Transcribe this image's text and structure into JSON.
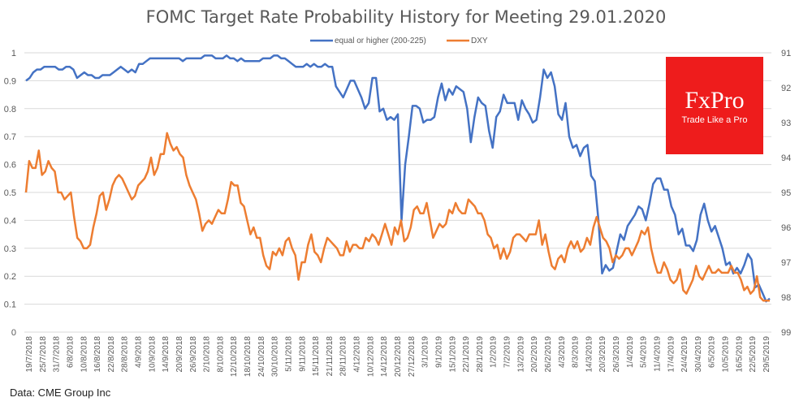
{
  "chart_data": {
    "type": "line",
    "title": "FOMC Target Rate Probability History for Meeting 29.01.2020",
    "source": "Data: CME Group Inc",
    "logo": {
      "brand": "FxPro",
      "tagline": "Trade Like a Pro",
      "color": "#ee1c1c"
    },
    "left_axis": {
      "min": 0,
      "max": 1,
      "ticks": [
        "0",
        "0.1",
        "0.2",
        "0.3",
        "0.4",
        "0.5",
        "0.6",
        "0.7",
        "0.8",
        "0.9",
        "1"
      ]
    },
    "right_axis": {
      "min": 91,
      "max": 99,
      "inverted": true,
      "ticks": [
        "91",
        "92",
        "93",
        "94",
        "95",
        "96",
        "97",
        "98",
        "99"
      ]
    },
    "grid": true,
    "legend_position": "top-center",
    "x_tick_labels": [
      "19/7/2018",
      "25/7/2018",
      "31/7/2018",
      "6/8/2018",
      "10/8/2018",
      "16/8/2018",
      "22/8/2018",
      "28/8/2018",
      "4/9/2018",
      "10/9/2018",
      "14/9/2018",
      "20/9/2018",
      "26/9/2018",
      "2/10/2018",
      "8/10/2018",
      "12/10/2018",
      "18/10/2018",
      "24/10/2018",
      "30/10/2018",
      "5/11/2018",
      "9/11/2018",
      "15/11/2018",
      "21/11/2018",
      "28/11/2018",
      "4/12/2018",
      "10/12/2018",
      "14/12/2018",
      "20/12/2018",
      "27/12/2018",
      "3/1/2019",
      "9/1/2019",
      "15/1/2019",
      "22/1/2019",
      "28/1/2019",
      "1/2/2019",
      "7/2/2019",
      "13/2/2019",
      "20/2/2019",
      "26/2/2019",
      "4/3/2019",
      "8/3/2019",
      "14/3/2019",
      "20/3/2019",
      "26/3/2019",
      "1/4/2019",
      "5/4/2019",
      "11/4/2019",
      "17/4/2019",
      "24/4/2019",
      "30/4/2019",
      "6/5/2019",
      "10/5/2019",
      "16/5/2019",
      "22/5/2019",
      "29/5/2019"
    ],
    "series": [
      {
        "name": "equal or higher (200-225)",
        "axis": "left",
        "color": "#4472c4",
        "values": [
          0.9,
          0.91,
          0.93,
          0.94,
          0.94,
          0.95,
          0.95,
          0.95,
          0.95,
          0.94,
          0.94,
          0.95,
          0.95,
          0.94,
          0.91,
          0.92,
          0.93,
          0.92,
          0.92,
          0.91,
          0.91,
          0.92,
          0.92,
          0.92,
          0.93,
          0.94,
          0.95,
          0.94,
          0.93,
          0.94,
          0.93,
          0.96,
          0.96,
          0.97,
          0.98,
          0.98,
          0.98,
          0.98,
          0.98,
          0.98,
          0.98,
          0.98,
          0.98,
          0.97,
          0.98,
          0.98,
          0.98,
          0.98,
          0.98,
          0.99,
          0.99,
          0.99,
          0.98,
          0.98,
          0.98,
          0.99,
          0.98,
          0.98,
          0.97,
          0.98,
          0.97,
          0.97,
          0.97,
          0.97,
          0.97,
          0.98,
          0.98,
          0.98,
          0.99,
          0.99,
          0.98,
          0.98,
          0.97,
          0.96,
          0.95,
          0.95,
          0.95,
          0.96,
          0.95,
          0.96,
          0.95,
          0.95,
          0.96,
          0.95,
          0.95,
          0.88,
          0.86,
          0.84,
          0.87,
          0.9,
          0.9,
          0.87,
          0.84,
          0.8,
          0.82,
          0.91,
          0.91,
          0.79,
          0.8,
          0.76,
          0.77,
          0.76,
          0.78,
          0.4,
          0.6,
          0.7,
          0.81,
          0.81,
          0.8,
          0.75,
          0.76,
          0.76,
          0.77,
          0.84,
          0.89,
          0.83,
          0.87,
          0.85,
          0.88,
          0.87,
          0.86,
          0.8,
          0.68,
          0.77,
          0.84,
          0.82,
          0.81,
          0.72,
          0.66,
          0.77,
          0.79,
          0.85,
          0.82,
          0.82,
          0.82,
          0.76,
          0.83,
          0.8,
          0.78,
          0.75,
          0.76,
          0.84,
          0.94,
          0.91,
          0.93,
          0.88,
          0.78,
          0.76,
          0.82,
          0.7,
          0.66,
          0.67,
          0.63,
          0.66,
          0.67,
          0.56,
          0.54,
          0.4,
          0.21,
          0.24,
          0.22,
          0.23,
          0.29,
          0.35,
          0.33,
          0.38,
          0.4,
          0.42,
          0.45,
          0.44,
          0.4,
          0.46,
          0.53,
          0.55,
          0.55,
          0.51,
          0.51,
          0.45,
          0.42,
          0.35,
          0.37,
          0.31,
          0.31,
          0.29,
          0.33,
          0.42,
          0.46,
          0.4,
          0.36,
          0.38,
          0.34,
          0.3,
          0.24,
          0.25,
          0.21,
          0.23,
          0.21,
          0.24,
          0.28,
          0.26,
          0.16,
          0.17,
          0.14,
          0.11,
          0.12
        ]
      },
      {
        "name": "DXY",
        "axis": "right",
        "color": "#ed7d31",
        "values": [
          95.0,
          94.1,
          94.3,
          94.3,
          93.8,
          94.5,
          94.4,
          94.1,
          94.3,
          94.4,
          95.0,
          95.0,
          95.2,
          95.1,
          95.0,
          95.7,
          96.3,
          96.4,
          96.6,
          96.6,
          96.5,
          96.0,
          95.6,
          95.1,
          95.0,
          95.5,
          95.2,
          94.8,
          94.6,
          94.5,
          94.6,
          94.8,
          95.0,
          95.2,
          95.1,
          94.8,
          94.7,
          94.6,
          94.4,
          94.0,
          94.5,
          94.3,
          93.9,
          93.9,
          93.3,
          93.6,
          93.8,
          93.7,
          93.9,
          94.0,
          94.5,
          94.8,
          95.0,
          95.2,
          95.6,
          96.1,
          95.9,
          95.8,
          95.9,
          95.7,
          95.5,
          95.6,
          95.6,
          95.2,
          94.7,
          94.8,
          94.8,
          95.3,
          95.4,
          95.8,
          96.2,
          96.0,
          96.3,
          96.3,
          96.8,
          97.1,
          97.2,
          96.7,
          96.8,
          96.6,
          96.8,
          96.4,
          96.3,
          96.6,
          96.8,
          97.5,
          97.0,
          97.0,
          96.5,
          96.2,
          96.7,
          96.8,
          97.0,
          96.6,
          96.3,
          96.4,
          96.5,
          96.6,
          96.8,
          96.8,
          96.4,
          96.7,
          96.5,
          96.5,
          96.6,
          96.6,
          96.3,
          96.4,
          96.2,
          96.3,
          96.5,
          96.2,
          95.9,
          96.2,
          96.5,
          96.0,
          96.2,
          95.8,
          96.4,
          96.3,
          96.0,
          95.5,
          95.4,
          95.6,
          95.6,
          95.3,
          95.8,
          96.3,
          96.1,
          95.9,
          96.0,
          95.9,
          95.5,
          95.6,
          95.3,
          95.5,
          95.6,
          95.6,
          95.2,
          95.3,
          95.4,
          95.6,
          95.6,
          95.8,
          96.2,
          96.3,
          96.6,
          96.5,
          96.9,
          96.6,
          96.9,
          96.7,
          96.3,
          96.2,
          96.2,
          96.3,
          96.4,
          96.2,
          96.2,
          96.2,
          95.8,
          96.5,
          96.2,
          96.7,
          97.1,
          97.2,
          96.9,
          96.8,
          97.0,
          96.6,
          96.4,
          96.6,
          96.4,
          96.7,
          96.6,
          96.3,
          96.5,
          96.0,
          95.7,
          96.0,
          96.3,
          96.4,
          96.6,
          97.0,
          96.8,
          96.9,
          96.8,
          96.6,
          96.6,
          96.8,
          96.6,
          96.4,
          96.1,
          96.2,
          96.0,
          96.6,
          97.0,
          97.3,
          97.3,
          97.0,
          97.2,
          97.5,
          97.6,
          97.5,
          97.2,
          97.8,
          97.9,
          97.7,
          97.5,
          97.1,
          97.4,
          97.5,
          97.3,
          97.1,
          97.3,
          97.3,
          97.2,
          97.3,
          97.3,
          97.3,
          97.1,
          97.3,
          97.3,
          97.5,
          97.8,
          97.7,
          97.9,
          97.8,
          97.4,
          98.0,
          98.1,
          98.1,
          98.1
        ]
      }
    ]
  }
}
